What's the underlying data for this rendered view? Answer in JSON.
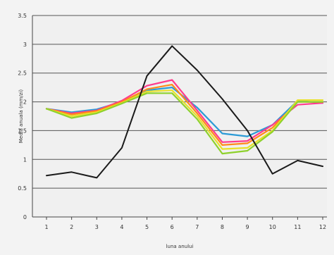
{
  "chart_data": {
    "type": "line",
    "title": "",
    "xlabel": "luna anului",
    "ylabel": "Media anuala (mm/zi)",
    "x": [
      1,
      2,
      3,
      4,
      5,
      6,
      7,
      8,
      9,
      10,
      11,
      12
    ],
    "x_tick_labels": [
      "1",
      "2",
      "3",
      "4",
      "5",
      "6",
      "7",
      "8",
      "9",
      "10",
      "11",
      "12"
    ],
    "y_tick_labels": [
      "0",
      "0.5",
      "1",
      "1.5",
      "2",
      "2.5",
      "3",
      "3.5"
    ],
    "ylim": [
      0,
      3.5
    ],
    "grid": true,
    "legend": "none",
    "series": [
      {
        "color": "#1a1a1a",
        "values": [
          0.72,
          0.78,
          0.68,
          1.2,
          2.45,
          2.97,
          2.55,
          2.05,
          1.5,
          0.75,
          0.98,
          0.88
        ]
      },
      {
        "color": "#2b9bd6",
        "values": [
          1.88,
          1.82,
          1.87,
          2.0,
          2.2,
          2.25,
          1.9,
          1.45,
          1.4,
          1.6,
          2.02,
          1.98
        ]
      },
      {
        "color": "#ff3b8c",
        "values": [
          1.88,
          1.8,
          1.85,
          2.02,
          2.28,
          2.38,
          1.85,
          1.3,
          1.32,
          1.6,
          1.95,
          1.98
        ]
      },
      {
        "color": "#ff8a1a",
        "values": [
          1.88,
          1.78,
          1.84,
          2.0,
          2.22,
          2.3,
          1.8,
          1.25,
          1.28,
          1.55,
          2.0,
          2.0
        ]
      },
      {
        "color": "#e8e12a",
        "values": [
          1.88,
          1.75,
          1.82,
          1.98,
          2.18,
          2.2,
          1.75,
          1.18,
          1.2,
          1.5,
          2.03,
          2.03
        ]
      },
      {
        "color": "#8ed12c",
        "values": [
          1.88,
          1.72,
          1.8,
          1.97,
          2.15,
          2.15,
          1.7,
          1.1,
          1.15,
          1.48,
          2.0,
          2.0
        ]
      }
    ]
  }
}
